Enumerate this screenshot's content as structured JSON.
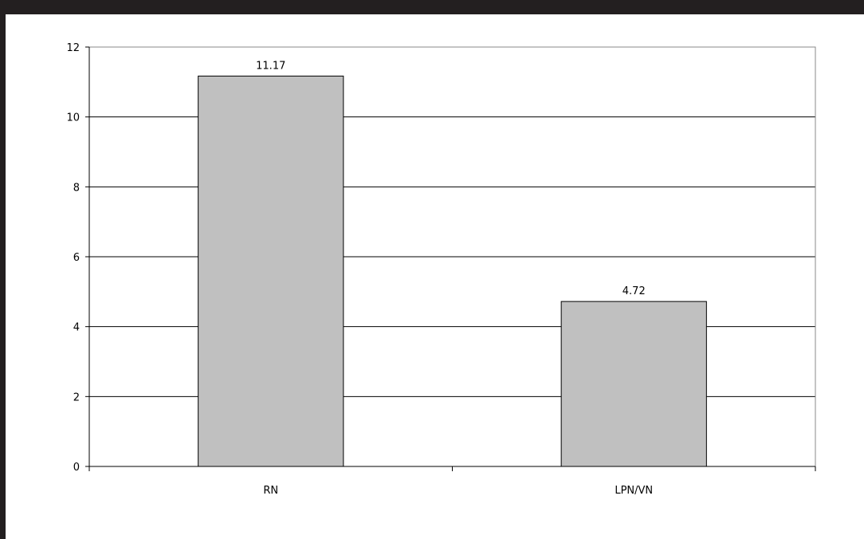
{
  "chart_data": {
    "type": "bar",
    "categories": [
      "RN",
      "LPN/VN"
    ],
    "values": [
      11.17,
      4.72
    ],
    "data_labels": [
      "11.17",
      "4.72"
    ],
    "y_ticks": [
      "0",
      "2",
      "4",
      "6",
      "8",
      "10",
      "12"
    ],
    "ylim": [
      0,
      12
    ],
    "grid": true,
    "legend": "none",
    "title": "",
    "xlabel": "",
    "ylabel": "",
    "colors": {
      "bar_fill": "#c0c0c0",
      "bar_stroke": "#000000",
      "frame": "#231f20",
      "grid": "#000000"
    }
  }
}
